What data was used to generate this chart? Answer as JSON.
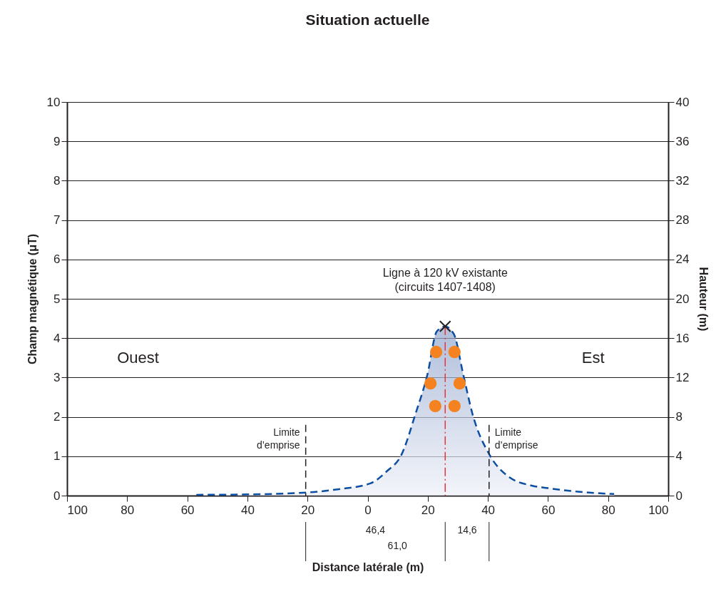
{
  "chart_data": {
    "type": "area",
    "title": "Situation actuelle",
    "xlabel": "Distance latérale (m)",
    "ylabel": "Champ magnétique (μT)",
    "y2label": "Hauteur (m)",
    "xlim": [
      -100,
      100
    ],
    "xticks": [
      {
        "value": -100,
        "label": "100"
      },
      {
        "value": -80,
        "label": "80"
      },
      {
        "value": -60,
        "label": "60"
      },
      {
        "value": -40,
        "label": "40"
      },
      {
        "value": -20,
        "label": "20"
      },
      0,
      20,
      40,
      60,
      80,
      100
    ],
    "ylim": [
      0,
      10
    ],
    "yticks": [
      0,
      1,
      2,
      3,
      4,
      5,
      6,
      7,
      8,
      9,
      10
    ],
    "y2lim": [
      0,
      40
    ],
    "y2ticks": [
      0,
      4,
      8,
      12,
      16,
      20,
      24,
      28,
      32,
      36,
      40
    ],
    "grid": "y",
    "series": [
      {
        "color": "#0b4ea2",
        "line_style": "dashed",
        "x": [
          -57,
          -40,
          -20,
          -10,
          0.9,
          6.4,
          11.2,
          15.9,
          19.9,
          23,
          25.8,
          28.7,
          31.8,
          34.9,
          40.6,
          46.7,
          54.8,
          60,
          70,
          82
        ],
        "values": [
          0.02,
          0.03,
          0.08,
          0.16,
          0.31,
          0.62,
          1.03,
          2.07,
          3.08,
          4.17,
          4.3,
          4.1,
          3.08,
          2.07,
          1.03,
          0.49,
          0.25,
          0.19,
          0.1,
          0.04
        ]
      },
      {
        "type": "line",
        "axis": "y2",
        "color": "#e8343a",
        "line_style": "dashed",
        "x": [
          25.8,
          25.8
        ],
        "values": [
          0,
          17.2
        ]
      },
      {
        "type": "line",
        "color": "#231f20",
        "line_style": "dashed",
        "x": [
          -20.6,
          -20.6
        ],
        "values": [
          0,
          1.8
        ]
      },
      {
        "type": "line",
        "color": "#231f20",
        "line_style": "dashed",
        "x": [
          40.4,
          40.4
        ],
        "values": [
          0,
          1.8
        ]
      },
      {
        "type": "scatter",
        "axis": "y2",
        "marker": "circle",
        "color": "#f58220",
        "x": [
          22.8,
          28.9,
          20.9,
          30.6,
          22.5,
          28.9
        ],
        "values": [
          14.6,
          14.6,
          11.4,
          11.4,
          9.1,
          9.1
        ]
      },
      {
        "type": "scatter",
        "axis": "y2",
        "marker": "cross",
        "color": "#231f20",
        "x": [
          25.8
        ],
        "values": [
          17.2
        ]
      }
    ],
    "annotations": [
      "Ligne à 120 kV existante\n(circuits 1407-1408)",
      {
        "text": "Limite\nd’emprise",
        "x": -20.6,
        "y": 1.6
      },
      {
        "text": "Limite\nd’emprise",
        "x": 40.4,
        "y": 1.6
      },
      "Ouest",
      "Est",
      "46,4",
      "14,6",
      "61,0"
    ]
  }
}
